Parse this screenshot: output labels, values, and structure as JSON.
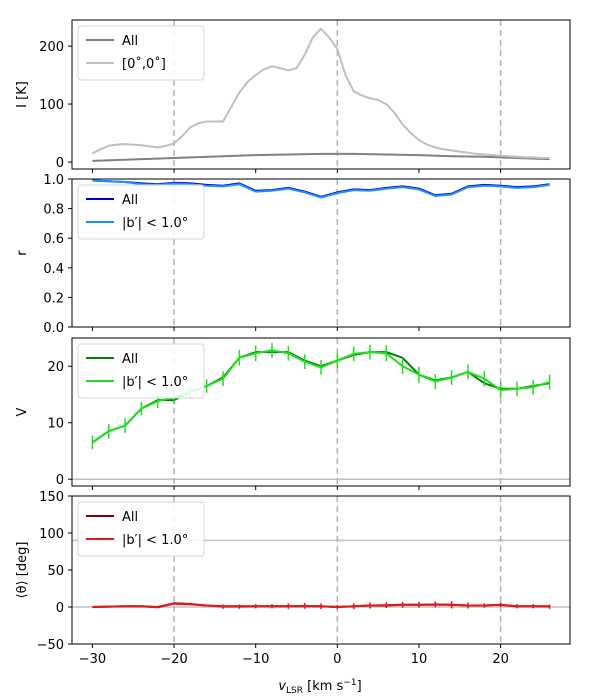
{
  "figure": {
    "xlabel_main": "v",
    "xlabel_sub": "LSR",
    "xlabel_unit": " [km s",
    "xlabel_exp": "−1",
    "xlabel_close": "]",
    "xticks": [
      -30,
      -20,
      -10,
      0,
      10,
      20
    ],
    "xlim": [
      -32.5,
      28.5
    ],
    "vlines": [
      -20,
      0,
      20
    ]
  },
  "chart_data": [
    {
      "type": "line",
      "ylabel": "I [K]",
      "ylim": [
        -12,
        245
      ],
      "yticks": [
        0,
        100,
        200
      ],
      "legend_position": "top-left",
      "hlines": [],
      "series": [
        {
          "name": "All",
          "color": "#808080",
          "x": [
            -30,
            -26,
            -22,
            -18,
            -14,
            -10,
            -6,
            -2,
            2,
            6,
            10,
            14,
            18,
            22,
            26
          ],
          "y": [
            2,
            4,
            6,
            8,
            10,
            12,
            13,
            14,
            14,
            13,
            12,
            10,
            9,
            7,
            5
          ]
        },
        {
          "name": "[0˚,0˚]",
          "color": "#bfbfbf",
          "x": [
            -30,
            -29,
            -28,
            -27,
            -26,
            -25,
            -24,
            -23,
            -22,
            -21,
            -20,
            -19,
            -18,
            -17,
            -16,
            -15,
            -14,
            -13,
            -12,
            -11,
            -10,
            -9,
            -8,
            -7,
            -6,
            -5,
            -4,
            -3,
            -2,
            -1,
            0,
            1,
            2,
            3,
            4,
            5,
            6,
            7,
            8,
            9,
            10,
            11,
            12,
            13,
            14,
            15,
            16,
            17,
            18,
            19,
            20,
            21,
            22,
            23,
            24,
            25,
            26
          ],
          "y": [
            15,
            22,
            28,
            30,
            31,
            30,
            29,
            27,
            25,
            28,
            32,
            45,
            60,
            67,
            70,
            70,
            70,
            95,
            120,
            138,
            150,
            160,
            165,
            162,
            158,
            162,
            185,
            215,
            230,
            215,
            195,
            150,
            122,
            115,
            110,
            107,
            100,
            85,
            65,
            50,
            38,
            30,
            25,
            22,
            20,
            18,
            16,
            14,
            13,
            12,
            11,
            10,
            9,
            8,
            8,
            7,
            7
          ]
        }
      ]
    },
    {
      "type": "line",
      "ylabel": "r",
      "ylim": [
        0.0,
        1.0
      ],
      "yticks": [
        0.0,
        0.2,
        0.4,
        0.6,
        0.8,
        1.0
      ],
      "yticklabels": [
        "0.0",
        "0.2",
        "0.4",
        "0.6",
        "0.8",
        "1.0"
      ],
      "legend_position": "top-left",
      "hlines": [],
      "series": [
        {
          "name": "All",
          "color": "#0000cd",
          "x": [
            -30,
            -28,
            -26,
            -24,
            -22,
            -20,
            -18,
            -16,
            -14,
            -12,
            -10,
            -8,
            -6,
            -4,
            -2,
            0,
            2,
            4,
            6,
            8,
            10,
            12,
            14,
            16,
            18,
            20,
            22,
            24,
            26
          ],
          "y": [
            0.99,
            0.985,
            0.98,
            0.97,
            0.965,
            0.975,
            0.97,
            0.96,
            0.955,
            0.97,
            0.92,
            0.925,
            0.94,
            0.915,
            0.88,
            0.91,
            0.93,
            0.925,
            0.94,
            0.95,
            0.935,
            0.89,
            0.9,
            0.95,
            0.96,
            0.955,
            0.945,
            0.95,
            0.965
          ]
        },
        {
          "name": "|b′| < 1.0°",
          "color": "#1e90ff",
          "x": [
            -30,
            -28,
            -26,
            -24,
            -22,
            -20,
            -18,
            -16,
            -14,
            -12,
            -10,
            -8,
            -6,
            -4,
            -2,
            0,
            2,
            4,
            6,
            8,
            10,
            12,
            14,
            16,
            18,
            20,
            22,
            24,
            26
          ],
          "y": [
            0.99,
            0.985,
            0.98,
            0.965,
            0.96,
            0.97,
            0.965,
            0.955,
            0.95,
            0.965,
            0.915,
            0.92,
            0.935,
            0.91,
            0.875,
            0.905,
            0.925,
            0.92,
            0.935,
            0.945,
            0.93,
            0.885,
            0.895,
            0.945,
            0.955,
            0.95,
            0.94,
            0.945,
            0.96
          ]
        }
      ]
    },
    {
      "type": "line",
      "ylabel": "V",
      "ylim": [
        -1.2,
        25
      ],
      "yticks": [
        0,
        10,
        20
      ],
      "legend_position": "top-left",
      "hlines": [
        0
      ],
      "series": [
        {
          "name": "All",
          "color": "#008000",
          "x": [
            -30,
            -28,
            -26,
            -24,
            -22,
            -20,
            -18,
            -16,
            -14,
            -12,
            -10,
            -8,
            -6,
            -4,
            -2,
            0,
            2,
            4,
            6,
            8,
            10,
            12,
            14,
            16,
            18,
            20,
            22,
            24,
            26
          ],
          "y": [
            6.5,
            8.5,
            9.5,
            12.5,
            14,
            14,
            15.5,
            16.5,
            18,
            21.5,
            22.5,
            22.5,
            22.5,
            21,
            20,
            21,
            22,
            22.5,
            22.5,
            21.5,
            18.5,
            17.5,
            18,
            19,
            17,
            16,
            16,
            16.5,
            17
          ]
        },
        {
          "name": "|b′| < 1.0°",
          "color": "#22dd22",
          "x": [
            -30,
            -28,
            -26,
            -24,
            -22,
            -20,
            -18,
            -16,
            -14,
            -12,
            -10,
            -8,
            -6,
            -4,
            -2,
            0,
            2,
            4,
            6,
            8,
            10,
            12,
            14,
            16,
            18,
            20,
            22,
            24,
            26
          ],
          "y": [
            6.5,
            8.5,
            9.5,
            12.5,
            13.8,
            14.5,
            15.5,
            16.5,
            17.8,
            21.5,
            22.3,
            22.8,
            22.3,
            20.8,
            19.8,
            21,
            22.2,
            22.5,
            22.3,
            20,
            18.5,
            17.3,
            18,
            19,
            17.8,
            15.8,
            16,
            16.3,
            17.2
          ],
          "err": [
            1.2,
            1.3,
            1.3,
            1.2,
            1.2,
            1.2,
            1.2,
            1.2,
            1.3,
            1.4,
            1.4,
            1.3,
            1.3,
            1.3,
            1.3,
            1.3,
            1.3,
            1.3,
            1.4,
            1.4,
            1.4,
            1.3,
            1.3,
            1.3,
            1.4,
            1.4,
            1.3,
            1.3,
            1.3
          ]
        }
      ]
    },
    {
      "type": "line",
      "ylabel": "⟨θ⟩ [deg]",
      "ylim": [
        -50,
        150
      ],
      "yticks": [
        -50,
        0,
        50,
        100,
        150
      ],
      "legend_position": "top-left",
      "hlines": [
        0,
        90
      ],
      "series": [
        {
          "name": "All",
          "color": "#8b0000",
          "x": [
            -30,
            -28,
            -26,
            -24,
            -22,
            -20,
            -18,
            -16,
            -14,
            -12,
            -10,
            -8,
            -6,
            -4,
            -2,
            0,
            2,
            4,
            6,
            8,
            10,
            12,
            14,
            16,
            18,
            20,
            22,
            24,
            26
          ],
          "y": [
            0,
            0.5,
            1,
            1,
            0,
            5,
            4,
            2,
            1,
            1,
            1,
            1,
            1,
            1,
            1,
            0,
            1,
            2,
            2,
            3,
            3,
            3,
            3,
            2,
            2,
            3,
            1,
            1,
            1
          ]
        },
        {
          "name": "|b′| < 1.0°",
          "color": "#e31a1c",
          "x": [
            -30,
            -28,
            -26,
            -24,
            -22,
            -20,
            -18,
            -16,
            -14,
            -12,
            -10,
            -8,
            -6,
            -4,
            -2,
            0,
            2,
            4,
            6,
            8,
            10,
            12,
            14,
            16,
            18,
            20,
            22,
            24,
            26
          ],
          "y": [
            0,
            0.5,
            1,
            1,
            -0.5,
            4.5,
            3.5,
            2,
            0.5,
            0.5,
            1,
            1,
            1,
            1.5,
            1,
            0,
            1,
            2,
            2.5,
            3,
            3,
            3.5,
            3,
            2,
            2,
            3,
            1,
            1,
            0.5
          ],
          "err": [
            0,
            0,
            0,
            0,
            0,
            0,
            0,
            0,
            3,
            3,
            3,
            3,
            4,
            4,
            4,
            3,
            4,
            4,
            4,
            4,
            4,
            4,
            5,
            4,
            3,
            3,
            3,
            3,
            3
          ]
        }
      ]
    }
  ]
}
